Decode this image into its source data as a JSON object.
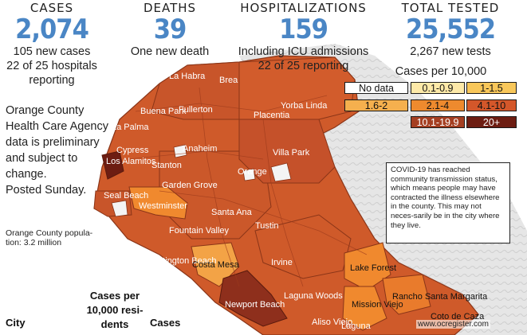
{
  "stats": {
    "cases": {
      "label": "CASES",
      "value": "2,074",
      "sub1": "105 new cases",
      "sub2": "22 of 25 hospitals",
      "sub3": "reporting"
    },
    "deaths": {
      "label": "DEATHS",
      "value": "39",
      "sub1": "One new death"
    },
    "hospitalizations": {
      "label": "HOSPITALIZATIONS",
      "value": "159",
      "sub1": "Including ICU admissions",
      "sub2": "22 of 25 reporting"
    },
    "tested": {
      "label": "TOTAL TESTED",
      "value": "25,552",
      "sub1": "2,267 new tests"
    }
  },
  "left_note": {
    "lines": [
      "Orange County",
      "Health Care Agency",
      "data is preliminary",
      "and subject to",
      "change.",
      "Posted Sunday."
    ]
  },
  "pop_note": {
    "line1": "Orange County popula-",
    "line2": "tion: 3.2 million"
  },
  "table": {
    "h_city": "City",
    "h_rate_1": "Cases per",
    "h_rate_2": "10,000 resi-",
    "h_rate_3": "dents",
    "h_cases": "Cases"
  },
  "legend": {
    "title": "Cases per 10,000",
    "items": [
      {
        "label": "No data",
        "color": "#ffffff",
        "text": "#111111"
      },
      {
        "label": "0.1-0.9",
        "color": "#fde9a8",
        "text": "#111111"
      },
      {
        "label": "1-1.5",
        "color": "#f8c75a",
        "text": "#111111"
      },
      {
        "label": "1.6-2",
        "color": "#f5b04e",
        "text": "#111111"
      },
      {
        "label": "2.1-4",
        "color": "#ee8a2e",
        "text": "#111111"
      },
      {
        "label": "4.1-10",
        "color": "#d4572a",
        "text": "#111111"
      },
      {
        "label": "10.1-19.9",
        "color": "#a53f22",
        "text": "#ffffff"
      },
      {
        "label": "20+",
        "color": "#6d1d12",
        "text": "#ffffff"
      }
    ]
  },
  "callout": {
    "text": "COVID-19 has reached community transmission status, which means people may have contracted the illness elsewhere in the county. This may not neces-sarily be in the city where they live."
  },
  "credit": "www.ocregister.com",
  "cities": [
    {
      "name": "La Habra"
    },
    {
      "name": "Brea"
    },
    {
      "name": "Buena Park"
    },
    {
      "name": "Fullerton"
    },
    {
      "name": "Placentia"
    },
    {
      "name": "Yorba Linda"
    },
    {
      "name": "La Palma"
    },
    {
      "name": "Cypress"
    },
    {
      "name": "Anaheim"
    },
    {
      "name": "Villa Park"
    },
    {
      "name": "Los Alamitos"
    },
    {
      "name": "Stanton"
    },
    {
      "name": "Orange"
    },
    {
      "name": "Garden Grove"
    },
    {
      "name": "Seal Beach"
    },
    {
      "name": "Westminster"
    },
    {
      "name": "Santa Ana"
    },
    {
      "name": "Tustin"
    },
    {
      "name": "Fountain Valley"
    },
    {
      "name": "Huntington Beach"
    },
    {
      "name": "Costa Mesa"
    },
    {
      "name": "Irvine"
    },
    {
      "name": "Lake Forest"
    },
    {
      "name": "Newport Beach"
    },
    {
      "name": "Laguna Woods"
    },
    {
      "name": "Mission Viejo"
    },
    {
      "name": "Rancho Santa Margarita"
    },
    {
      "name": "Aliso Viejo"
    },
    {
      "name": "Laguna"
    },
    {
      "name": "Coto de Caza"
    }
  ]
}
